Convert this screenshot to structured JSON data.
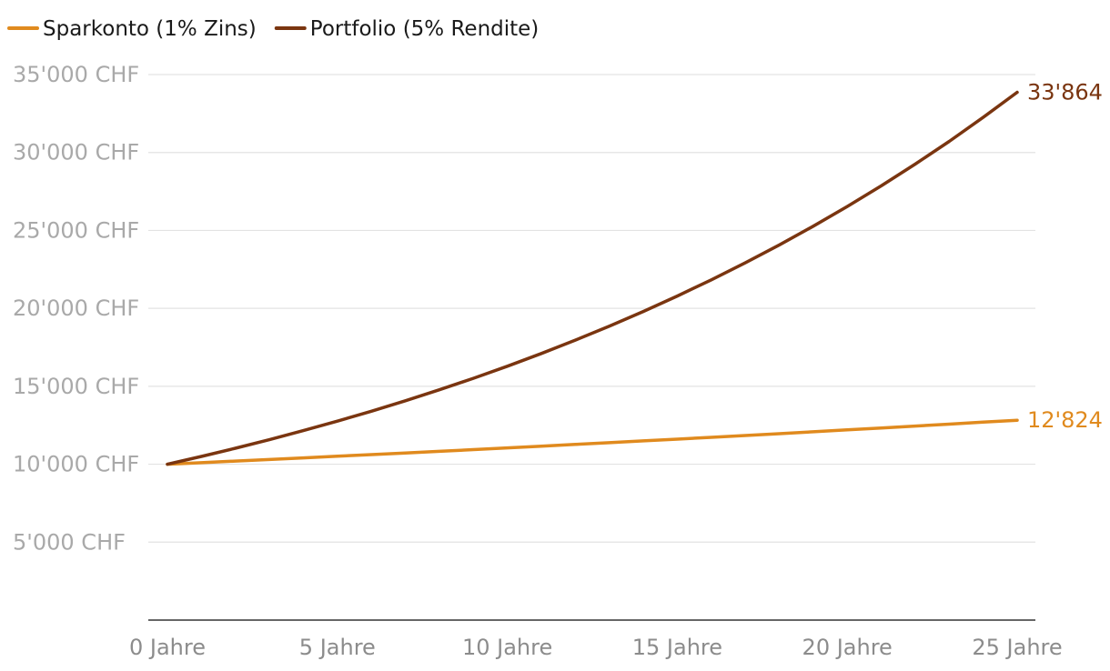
{
  "chart_data": {
    "type": "line",
    "x": [
      0,
      1,
      2,
      3,
      4,
      5,
      6,
      7,
      8,
      9,
      10,
      11,
      12,
      13,
      14,
      15,
      16,
      17,
      18,
      19,
      20,
      21,
      22,
      23,
      24,
      25
    ],
    "xticks": [
      0,
      5,
      10,
      15,
      20,
      25
    ],
    "xtick_labels": [
      "0 Jahre",
      "5 Jahre",
      "10 Jahre",
      "15 Jahre",
      "20 Jahre",
      "25 Jahre"
    ],
    "yticks": [
      5000,
      10000,
      15000,
      20000,
      25000,
      30000,
      35000
    ],
    "ytick_labels": [
      "5'000 CHF",
      "10'000 CHF",
      "15'000 CHF",
      "20'000 CHF",
      "25'000 CHF",
      "30'000 CHF",
      "35'000 CHF"
    ],
    "xlim": [
      0,
      25
    ],
    "ylim": [
      0,
      35000
    ],
    "grid": "horizontal",
    "legend": "top-left",
    "series": [
      {
        "name": "Sparkonto (1% Zins)",
        "color": "#e08a1e",
        "end_label": "12'824",
        "values": [
          10000,
          10100,
          10201,
          10303,
          10406,
          10510,
          10615,
          10721,
          10829,
          10937,
          11046,
          11157,
          11268,
          11381,
          11495,
          11610,
          11726,
          11843,
          11961,
          12081,
          12202,
          12324,
          12447,
          12572,
          12697,
          12824
        ]
      },
      {
        "name": "Portfolio (5% Rendite)",
        "color": "#7a3510",
        "end_label": "33'864",
        "values": [
          10000,
          10500,
          11025,
          11576,
          12155,
          12763,
          13401,
          14071,
          14775,
          15513,
          16289,
          17103,
          17959,
          18856,
          19799,
          20789,
          21829,
          22920,
          24066,
          25270,
          26533,
          27860,
          29253,
          30715,
          32251,
          33864
        ]
      }
    ]
  }
}
